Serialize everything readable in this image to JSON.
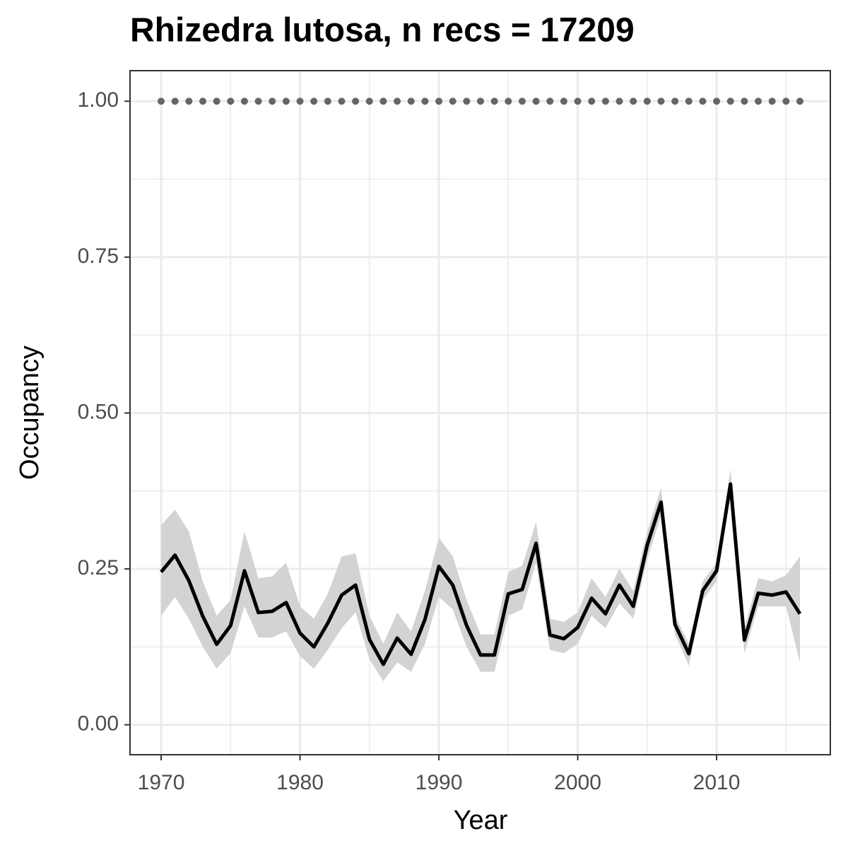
{
  "chart_data": {
    "type": "line",
    "title": "Rhizedra lutosa, n recs = 17209",
    "x_label": "Year",
    "y_label": "Occupancy",
    "x": [
      1970,
      1971,
      1972,
      1973,
      1974,
      1975,
      1976,
      1977,
      1978,
      1979,
      1980,
      1981,
      1982,
      1983,
      1984,
      1985,
      1986,
      1987,
      1988,
      1989,
      1990,
      1991,
      1992,
      1993,
      1994,
      1995,
      1996,
      1997,
      1998,
      1999,
      2000,
      2001,
      2002,
      2003,
      2004,
      2005,
      2006,
      2007,
      2008,
      2009,
      2010,
      2011,
      2012,
      2013,
      2014,
      2015,
      2016
    ],
    "series": [
      {
        "color": "#000000",
        "band_color": "#d3d3d3",
        "values": [
          0.245,
          0.272,
          0.231,
          0.174,
          0.129,
          0.159,
          0.247,
          0.18,
          0.182,
          0.196,
          0.147,
          0.125,
          0.163,
          0.208,
          0.224,
          0.137,
          0.097,
          0.139,
          0.113,
          0.169,
          0.254,
          0.224,
          0.159,
          0.112,
          0.112,
          0.21,
          0.217,
          0.291,
          0.144,
          0.138,
          0.156,
          0.203,
          0.178,
          0.224,
          0.19,
          0.288,
          0.357,
          0.161,
          0.114,
          0.215,
          0.247,
          0.386,
          0.136,
          0.211,
          0.208,
          0.213,
          0.178
        ],
        "lower": [
          0.175,
          0.205,
          0.17,
          0.125,
          0.09,
          0.115,
          0.19,
          0.14,
          0.14,
          0.15,
          0.11,
          0.09,
          0.12,
          0.155,
          0.18,
          0.105,
          0.07,
          0.1,
          0.085,
          0.13,
          0.205,
          0.185,
          0.125,
          0.085,
          0.085,
          0.175,
          0.185,
          0.26,
          0.12,
          0.115,
          0.13,
          0.175,
          0.155,
          0.195,
          0.17,
          0.265,
          0.335,
          0.145,
          0.095,
          0.2,
          0.23,
          0.37,
          0.115,
          0.19,
          0.19,
          0.19,
          0.1
        ],
        "upper": [
          0.32,
          0.345,
          0.31,
          0.23,
          0.175,
          0.2,
          0.31,
          0.235,
          0.238,
          0.26,
          0.19,
          0.17,
          0.21,
          0.27,
          0.275,
          0.175,
          0.13,
          0.18,
          0.15,
          0.215,
          0.3,
          0.27,
          0.2,
          0.145,
          0.145,
          0.245,
          0.255,
          0.325,
          0.17,
          0.165,
          0.18,
          0.235,
          0.205,
          0.25,
          0.215,
          0.31,
          0.38,
          0.175,
          0.13,
          0.23,
          0.26,
          0.41,
          0.155,
          0.235,
          0.23,
          0.24,
          0.27
        ]
      },
      {
        "color": "#666666",
        "marker": "point",
        "values": [
          1,
          1,
          1,
          1,
          1,
          1,
          1,
          1,
          1,
          1,
          1,
          1,
          1,
          1,
          1,
          1,
          1,
          1,
          1,
          1,
          1,
          1,
          1,
          1,
          1,
          1,
          1,
          1,
          1,
          1,
          1,
          1,
          1,
          1,
          1,
          1,
          1,
          1,
          1,
          1,
          1,
          1,
          1,
          1,
          1,
          1,
          1
        ]
      }
    ],
    "xlim": [
      1967.76,
      2018.19
    ],
    "ylim": [
      -0.048,
      1.049
    ],
    "xticks": [
      1970,
      1980,
      1990,
      2000,
      2010
    ],
    "yticks": [
      {
        "value": 0,
        "label": "0.00"
      },
      {
        "value": 0.25,
        "label": "0.25"
      },
      {
        "value": 0.5,
        "label": "0.50"
      },
      {
        "value": 0.75,
        "label": "0.75"
      },
      {
        "value": 1,
        "label": "1.00"
      }
    ],
    "xminor": [
      1975,
      1985,
      1995,
      2005,
      2015
    ],
    "yminor": [
      0.125,
      0.375,
      0.625,
      0.875
    ],
    "grid": true
  }
}
